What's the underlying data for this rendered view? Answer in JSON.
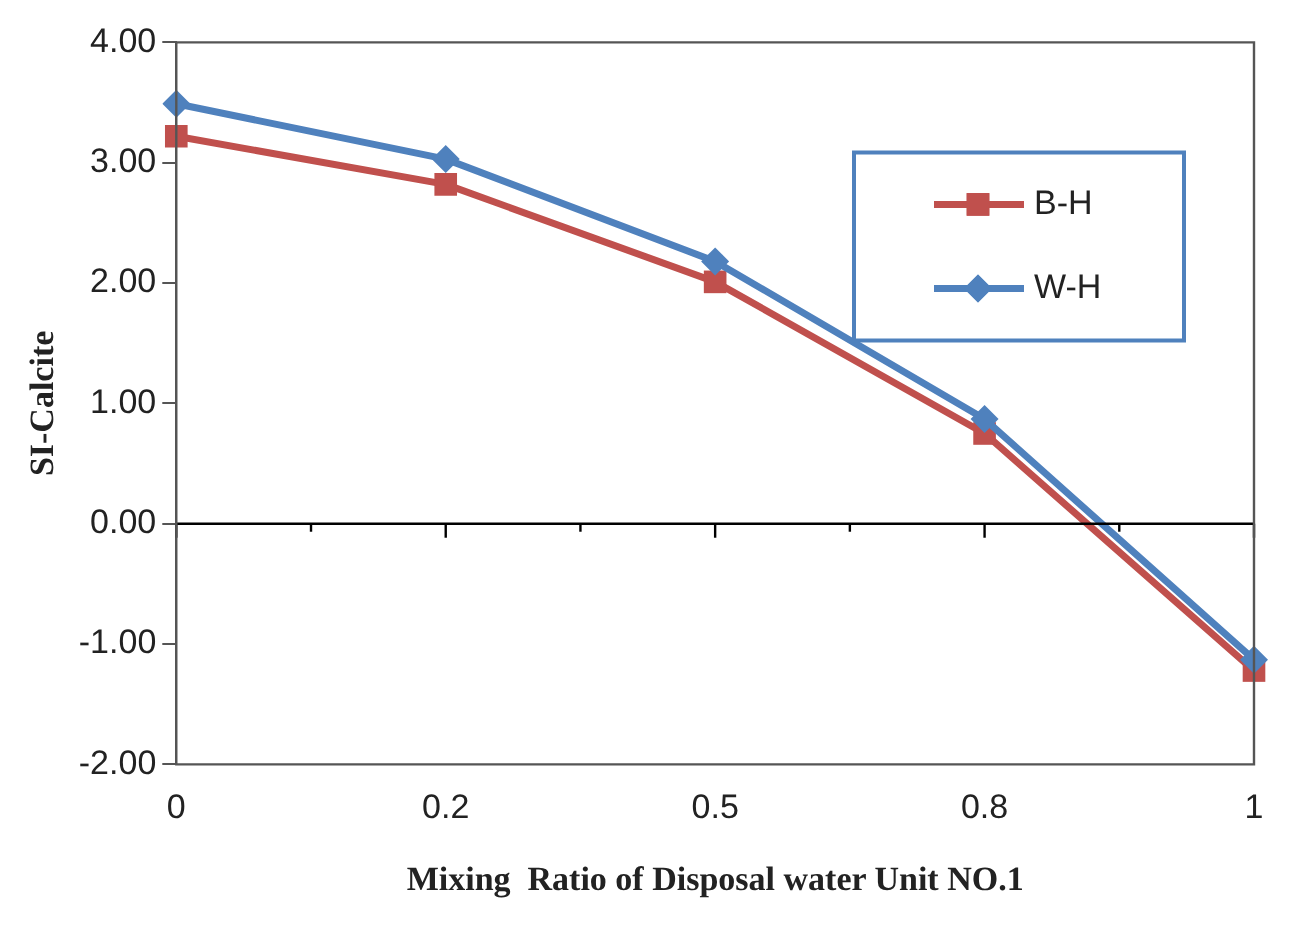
{
  "chart_data": {
    "type": "line",
    "xlabel": "Mixing  Ratio of Disposal water Unit NO.1",
    "ylabel": "SI-Calcite",
    "categories": [
      "0",
      "0.2",
      "0.5",
      "0.8",
      "1"
    ],
    "series": [
      {
        "name": "B-H",
        "color": "#c0504d",
        "marker": "square",
        "values": [
          3.22,
          2.82,
          2.01,
          0.75,
          -1.22
        ]
      },
      {
        "name": "W-H",
        "color": "#4f81bd",
        "marker": "diamond",
        "values": [
          3.49,
          3.03,
          2.18,
          0.87,
          -1.13
        ]
      }
    ],
    "ylim": [
      -2,
      4
    ],
    "yticks": [
      {
        "value": -2,
        "label": "-2.00"
      },
      {
        "value": -1,
        "label": "-1.00"
      },
      {
        "value": 0,
        "label": "0.00"
      },
      {
        "value": 1,
        "label": "1.00"
      },
      {
        "value": 2,
        "label": "2.00"
      },
      {
        "value": 3,
        "label": "3.00"
      },
      {
        "value": 4,
        "label": "4.00"
      }
    ],
    "ref_lines": [
      {
        "axis": "y",
        "value": 0,
        "color": "#000000"
      }
    ],
    "legend": "top right",
    "grid": false,
    "line_style": "solid"
  }
}
